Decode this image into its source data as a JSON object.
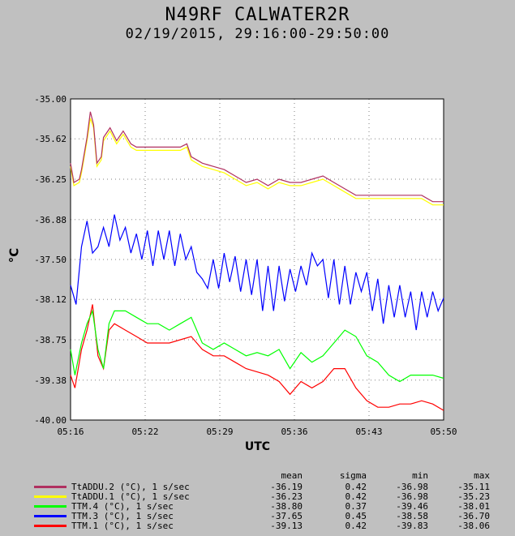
{
  "header": {
    "title": "N49RF CALWATER2R",
    "subtitle": "02/19/2015, 29:16:00-29:50:00"
  },
  "chart_data": {
    "type": "line",
    "xlabel": "UTC",
    "ylabel": "°C",
    "ylim": [
      -40.0,
      -35.0
    ],
    "xlim": [
      "05:16",
      "05:50"
    ],
    "yticks": [
      "-35.00",
      "-35.62",
      "-36.25",
      "-36.88",
      "-37.50",
      "-38.12",
      "-38.75",
      "-39.38",
      "-40.00"
    ],
    "xticks": [
      "05:16",
      "05:22",
      "05:29",
      "05:36",
      "05:43",
      "05:50"
    ],
    "legend_headers": [
      "mean",
      "sigma",
      "min",
      "max"
    ],
    "series": [
      {
        "name": "TtADDU.2 (°C), 1 s/sec",
        "color": "#b03060",
        "mean": "-36.19",
        "sigma": "0.42",
        "min": "-36.98",
        "max": "-35.11",
        "points": [
          [
            0,
            -36.0
          ],
          [
            0.3,
            -36.3
          ],
          [
            0.8,
            -36.25
          ],
          [
            1.0,
            -36.1
          ],
          [
            1.5,
            -35.6
          ],
          [
            1.8,
            -35.2
          ],
          [
            2.1,
            -35.4
          ],
          [
            2.4,
            -36.0
          ],
          [
            2.8,
            -35.9
          ],
          [
            3.0,
            -35.6
          ],
          [
            3.6,
            -35.45
          ],
          [
            4.2,
            -35.65
          ],
          [
            4.8,
            -35.5
          ],
          [
            5.5,
            -35.7
          ],
          [
            6.0,
            -35.75
          ],
          [
            7.0,
            -35.75
          ],
          [
            8.0,
            -35.75
          ],
          [
            9.0,
            -35.75
          ],
          [
            10.0,
            -35.75
          ],
          [
            10.6,
            -35.7
          ],
          [
            11.0,
            -35.9
          ],
          [
            11.5,
            -35.95
          ],
          [
            12.0,
            -36.0
          ],
          [
            13.0,
            -36.05
          ],
          [
            14.0,
            -36.1
          ],
          [
            15.0,
            -36.2
          ],
          [
            16.0,
            -36.3
          ],
          [
            17.0,
            -36.25
          ],
          [
            18.0,
            -36.35
          ],
          [
            19.0,
            -36.25
          ],
          [
            20.0,
            -36.3
          ],
          [
            21.0,
            -36.3
          ],
          [
            22.0,
            -36.25
          ],
          [
            23.0,
            -36.2
          ],
          [
            24.0,
            -36.3
          ],
          [
            25.0,
            -36.4
          ],
          [
            26.0,
            -36.5
          ],
          [
            27.0,
            -36.5
          ],
          [
            28.0,
            -36.5
          ],
          [
            29.0,
            -36.5
          ],
          [
            30.0,
            -36.5
          ],
          [
            31.0,
            -36.5
          ],
          [
            32.0,
            -36.5
          ],
          [
            33.0,
            -36.6
          ],
          [
            34.0,
            -36.6
          ]
        ]
      },
      {
        "name": "TtADDU.1 (°C), 1 s/sec",
        "color": "#ffff00",
        "mean": "-36.23",
        "sigma": "0.42",
        "min": "-36.98",
        "max": "-35.23",
        "points": [
          [
            0,
            -36.05
          ],
          [
            0.3,
            -36.35
          ],
          [
            0.8,
            -36.3
          ],
          [
            1.0,
            -36.15
          ],
          [
            1.5,
            -35.65
          ],
          [
            1.8,
            -35.3
          ],
          [
            2.1,
            -35.45
          ],
          [
            2.4,
            -36.05
          ],
          [
            2.8,
            -35.95
          ],
          [
            3.0,
            -35.65
          ],
          [
            3.6,
            -35.5
          ],
          [
            4.2,
            -35.7
          ],
          [
            4.8,
            -35.55
          ],
          [
            5.5,
            -35.75
          ],
          [
            6.0,
            -35.8
          ],
          [
            7.0,
            -35.8
          ],
          [
            8.0,
            -35.8
          ],
          [
            9.0,
            -35.8
          ],
          [
            10.0,
            -35.8
          ],
          [
            10.6,
            -35.75
          ],
          [
            11.0,
            -35.95
          ],
          [
            11.5,
            -36.0
          ],
          [
            12.0,
            -36.05
          ],
          [
            13.0,
            -36.1
          ],
          [
            14.0,
            -36.15
          ],
          [
            15.0,
            -36.25
          ],
          [
            16.0,
            -36.35
          ],
          [
            17.0,
            -36.3
          ],
          [
            18.0,
            -36.4
          ],
          [
            19.0,
            -36.3
          ],
          [
            20.0,
            -36.35
          ],
          [
            21.0,
            -36.35
          ],
          [
            22.0,
            -36.3
          ],
          [
            23.0,
            -36.25
          ],
          [
            24.0,
            -36.35
          ],
          [
            25.0,
            -36.45
          ],
          [
            26.0,
            -36.55
          ],
          [
            27.0,
            -36.55
          ],
          [
            28.0,
            -36.55
          ],
          [
            29.0,
            -36.55
          ],
          [
            30.0,
            -36.55
          ],
          [
            31.0,
            -36.55
          ],
          [
            32.0,
            -36.55
          ],
          [
            33.0,
            -36.65
          ],
          [
            34.0,
            -36.65
          ]
        ]
      },
      {
        "name": "TTM.4 (°C), 1 s/sec",
        "color": "#00ff00",
        "mean": "-38.80",
        "sigma": "0.37",
        "min": "-39.46",
        "max": "-38.01",
        "points": [
          [
            0,
            -38.9
          ],
          [
            0.4,
            -39.3
          ],
          [
            1.0,
            -38.8
          ],
          [
            1.5,
            -38.5
          ],
          [
            2.0,
            -38.3
          ],
          [
            2.5,
            -38.9
          ],
          [
            3.0,
            -39.2
          ],
          [
            3.5,
            -38.5
          ],
          [
            4.0,
            -38.3
          ],
          [
            5.0,
            -38.3
          ],
          [
            6.0,
            -38.4
          ],
          [
            7.0,
            -38.5
          ],
          [
            8.0,
            -38.5
          ],
          [
            9.0,
            -38.6
          ],
          [
            10.0,
            -38.5
          ],
          [
            11.0,
            -38.4
          ],
          [
            12.0,
            -38.8
          ],
          [
            13.0,
            -38.9
          ],
          [
            14.0,
            -38.8
          ],
          [
            15.0,
            -38.9
          ],
          [
            16.0,
            -39.0
          ],
          [
            17.0,
            -38.95
          ],
          [
            18.0,
            -39.0
          ],
          [
            19.0,
            -38.9
          ],
          [
            20.0,
            -39.2
          ],
          [
            21.0,
            -38.95
          ],
          [
            22.0,
            -39.1
          ],
          [
            23.0,
            -39.0
          ],
          [
            24.0,
            -38.8
          ],
          [
            25.0,
            -38.6
          ],
          [
            26.0,
            -38.7
          ],
          [
            27.0,
            -39.0
          ],
          [
            28.0,
            -39.1
          ],
          [
            29.0,
            -39.3
          ],
          [
            30.0,
            -39.4
          ],
          [
            31.0,
            -39.3
          ],
          [
            32.0,
            -39.3
          ],
          [
            33.0,
            -39.3
          ],
          [
            34.0,
            -39.35
          ]
        ]
      },
      {
        "name": "TTM.3 (°C), 1 s/sec",
        "color": "#0000ff",
        "mean": "-37.65",
        "sigma": "0.45",
        "min": "-38.58",
        "max": "-36.70",
        "points": [
          [
            0,
            -37.9
          ],
          [
            0.5,
            -38.2
          ],
          [
            1.0,
            -37.3
          ],
          [
            1.5,
            -36.9
          ],
          [
            2.0,
            -37.4
          ],
          [
            2.5,
            -37.3
          ],
          [
            3.0,
            -37.0
          ],
          [
            3.5,
            -37.3
          ],
          [
            4.0,
            -36.8
          ],
          [
            4.5,
            -37.2
          ],
          [
            5.0,
            -37.0
          ],
          [
            5.5,
            -37.4
          ],
          [
            6.0,
            -37.1
          ],
          [
            6.5,
            -37.5
          ],
          [
            7.0,
            -37.05
          ],
          [
            7.5,
            -37.6
          ],
          [
            8.0,
            -37.05
          ],
          [
            8.5,
            -37.5
          ],
          [
            9.0,
            -37.05
          ],
          [
            9.5,
            -37.6
          ],
          [
            10.0,
            -37.1
          ],
          [
            10.5,
            -37.5
          ],
          [
            11.0,
            -37.3
          ],
          [
            11.5,
            -37.7
          ],
          [
            12.0,
            -37.8
          ],
          [
            12.5,
            -37.95
          ],
          [
            13.0,
            -37.5
          ],
          [
            13.5,
            -37.95
          ],
          [
            14.0,
            -37.4
          ],
          [
            14.5,
            -37.85
          ],
          [
            15.0,
            -37.45
          ],
          [
            15.5,
            -38.0
          ],
          [
            16.0,
            -37.5
          ],
          [
            16.5,
            -38.05
          ],
          [
            17.0,
            -37.5
          ],
          [
            17.5,
            -38.3
          ],
          [
            18.0,
            -37.6
          ],
          [
            18.5,
            -38.3
          ],
          [
            19.0,
            -37.6
          ],
          [
            19.5,
            -38.15
          ],
          [
            20.0,
            -37.65
          ],
          [
            20.5,
            -38.0
          ],
          [
            21.0,
            -37.6
          ],
          [
            21.5,
            -37.9
          ],
          [
            22.0,
            -37.4
          ],
          [
            22.5,
            -37.6
          ],
          [
            23.0,
            -37.5
          ],
          [
            23.5,
            -38.1
          ],
          [
            24.0,
            -37.5
          ],
          [
            24.5,
            -38.2
          ],
          [
            25.0,
            -37.6
          ],
          [
            25.5,
            -38.2
          ],
          [
            26.0,
            -37.7
          ],
          [
            26.5,
            -38.0
          ],
          [
            27.0,
            -37.7
          ],
          [
            27.5,
            -38.3
          ],
          [
            28.0,
            -37.8
          ],
          [
            28.5,
            -38.5
          ],
          [
            29.0,
            -37.9
          ],
          [
            29.5,
            -38.4
          ],
          [
            30.0,
            -37.9
          ],
          [
            30.5,
            -38.4
          ],
          [
            31.0,
            -38.0
          ],
          [
            31.5,
            -38.6
          ],
          [
            32.0,
            -38.0
          ],
          [
            32.5,
            -38.4
          ],
          [
            33.0,
            -38.0
          ],
          [
            33.5,
            -38.3
          ],
          [
            34.0,
            -38.1
          ]
        ]
      },
      {
        "name": "TTM.1 (°C), 1 s/sec",
        "color": "#ff0000",
        "mean": "-39.13",
        "sigma": "0.42",
        "min": "-39.83",
        "max": "-38.06",
        "points": [
          [
            0,
            -39.3
          ],
          [
            0.4,
            -39.5
          ],
          [
            1.0,
            -38.9
          ],
          [
            1.5,
            -38.6
          ],
          [
            2.0,
            -38.2
          ],
          [
            2.5,
            -39.0
          ],
          [
            3.0,
            -39.2
          ],
          [
            3.5,
            -38.6
          ],
          [
            4.0,
            -38.5
          ],
          [
            5.0,
            -38.6
          ],
          [
            6.0,
            -38.7
          ],
          [
            7.0,
            -38.8
          ],
          [
            8.0,
            -38.8
          ],
          [
            9.0,
            -38.8
          ],
          [
            10.0,
            -38.75
          ],
          [
            11.0,
            -38.7
          ],
          [
            12.0,
            -38.9
          ],
          [
            13.0,
            -39.0
          ],
          [
            14.0,
            -39.0
          ],
          [
            15.0,
            -39.1
          ],
          [
            16.0,
            -39.2
          ],
          [
            17.0,
            -39.25
          ],
          [
            18.0,
            -39.3
          ],
          [
            19.0,
            -39.4
          ],
          [
            20.0,
            -39.6
          ],
          [
            21.0,
            -39.4
          ],
          [
            22.0,
            -39.5
          ],
          [
            23.0,
            -39.4
          ],
          [
            24.0,
            -39.2
          ],
          [
            25.0,
            -39.2
          ],
          [
            26.0,
            -39.5
          ],
          [
            27.0,
            -39.7
          ],
          [
            28.0,
            -39.8
          ],
          [
            29.0,
            -39.8
          ],
          [
            30.0,
            -39.75
          ],
          [
            31.0,
            -39.75
          ],
          [
            32.0,
            -39.7
          ],
          [
            33.0,
            -39.75
          ],
          [
            34.0,
            -39.85
          ]
        ]
      }
    ]
  }
}
